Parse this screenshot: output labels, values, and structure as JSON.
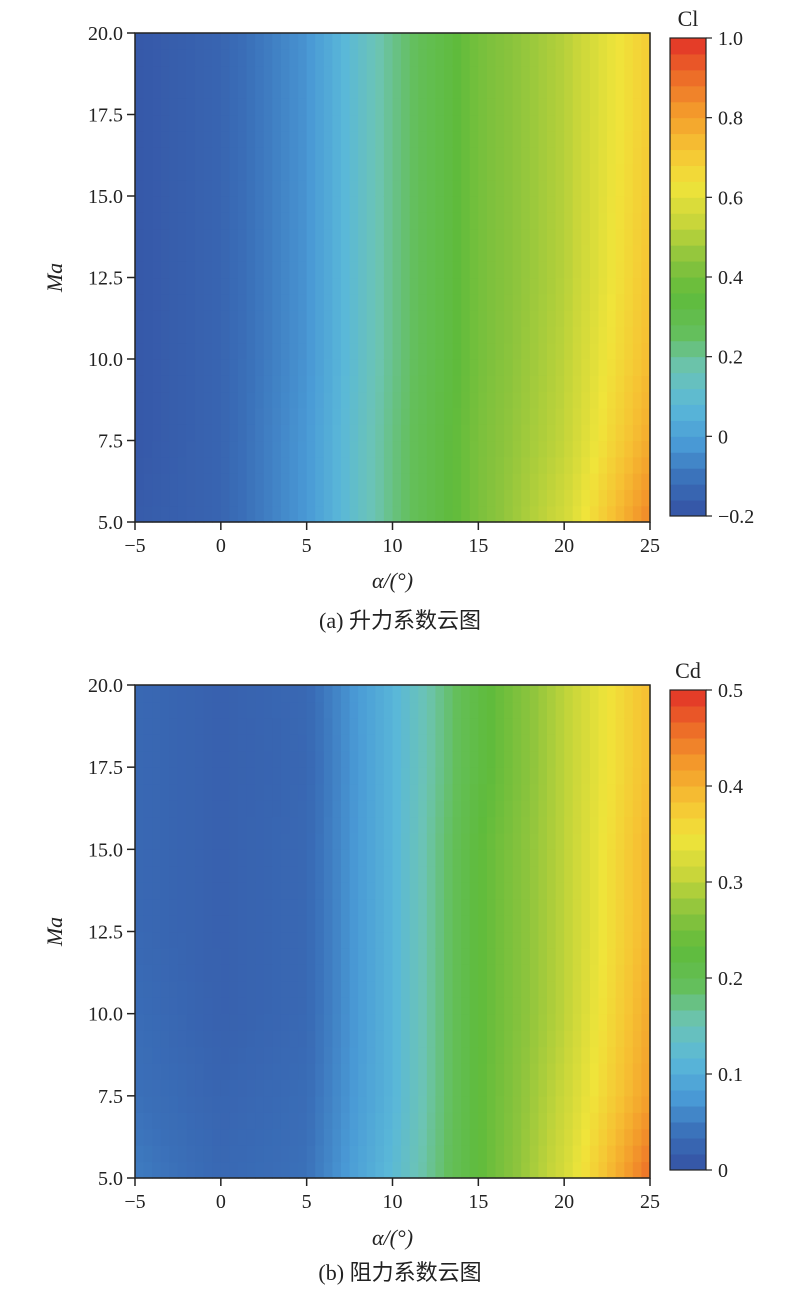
{
  "chart_data": [
    {
      "type": "heatmap",
      "caption": "(a) 升力系数云图",
      "xlabel": "α/(°)",
      "ylabel": "Ma",
      "xlim": [
        -5,
        25
      ],
      "ylim": [
        5,
        20
      ],
      "x_ticks": [
        "−5",
        "0",
        "5",
        "10",
        "15",
        "20",
        "25"
      ],
      "x_tick_values": [
        -5,
        0,
        5,
        10,
        15,
        20,
        25
      ],
      "y_ticks": [
        "5.0",
        "7.5",
        "10.0",
        "12.5",
        "15.0",
        "17.5",
        "20.0"
      ],
      "y_tick_values": [
        5,
        7.5,
        10,
        12.5,
        15,
        17.5,
        20
      ],
      "colorbar": {
        "title": "Cl",
        "range": [
          -0.2,
          1.0
        ],
        "ticks": [
          "−0.2",
          "0",
          "0.2",
          "0.4",
          "0.6",
          "0.8",
          "1.0"
        ],
        "tick_values": [
          -0.2,
          0,
          0.2,
          0.4,
          0.6,
          0.8,
          1.0
        ]
      },
      "x": [
        -5,
        0,
        5,
        10,
        15,
        20,
        25
      ],
      "y": [
        5,
        7.5,
        10,
        12.5,
        15,
        17.5,
        20
      ],
      "z": [
        [
          -0.17,
          -0.14,
          -0.02,
          0.22,
          0.41,
          0.56,
          0.86
        ],
        [
          -0.18,
          -0.14,
          -0.02,
          0.22,
          0.41,
          0.53,
          0.78
        ],
        [
          -0.18,
          -0.14,
          -0.03,
          0.21,
          0.4,
          0.52,
          0.74
        ],
        [
          -0.18,
          -0.14,
          -0.03,
          0.21,
          0.4,
          0.51,
          0.72
        ],
        [
          -0.18,
          -0.14,
          -0.03,
          0.21,
          0.4,
          0.51,
          0.71
        ],
        [
          -0.18,
          -0.14,
          -0.03,
          0.21,
          0.4,
          0.51,
          0.7
        ],
        [
          -0.18,
          -0.14,
          -0.03,
          0.21,
          0.4,
          0.51,
          0.7
        ]
      ]
    },
    {
      "type": "heatmap",
      "caption": "(b) 阻力系数云图",
      "xlabel": "α/(°)",
      "ylabel": "Ma",
      "xlim": [
        -5,
        25
      ],
      "ylim": [
        5,
        20
      ],
      "x_ticks": [
        "−5",
        "0",
        "5",
        "10",
        "15",
        "20",
        "25"
      ],
      "x_tick_values": [
        -5,
        0,
        5,
        10,
        15,
        20,
        25
      ],
      "y_ticks": [
        "5.0",
        "7.5",
        "10.0",
        "12.5",
        "15.0",
        "17.5",
        "20.0"
      ],
      "y_tick_values": [
        5,
        7.5,
        10,
        12.5,
        15,
        17.5,
        20
      ],
      "colorbar": {
        "title": "Cd",
        "range": [
          0,
          0.5
        ],
        "ticks": [
          "0",
          "0.1",
          "0.2",
          "0.3",
          "0.4",
          "0.5"
        ],
        "tick_values": [
          0,
          0.1,
          0.2,
          0.3,
          0.4,
          0.5
        ]
      },
      "x": [
        -5,
        0,
        5,
        10,
        15,
        20,
        25
      ],
      "y": [
        5,
        7.5,
        10,
        12.5,
        15,
        17.5,
        20
      ],
      "z": [
        [
          0.05,
          0.03,
          0.04,
          0.12,
          0.23,
          0.32,
          0.46
        ],
        [
          0.04,
          0.025,
          0.035,
          0.11,
          0.23,
          0.31,
          0.42
        ],
        [
          0.035,
          0.02,
          0.03,
          0.11,
          0.23,
          0.3,
          0.41
        ],
        [
          0.03,
          0.02,
          0.03,
          0.11,
          0.23,
          0.3,
          0.4
        ],
        [
          0.03,
          0.02,
          0.03,
          0.11,
          0.23,
          0.3,
          0.4
        ],
        [
          0.03,
          0.02,
          0.028,
          0.11,
          0.22,
          0.3,
          0.39
        ],
        [
          0.03,
          0.02,
          0.03,
          0.11,
          0.22,
          0.3,
          0.39
        ]
      ]
    }
  ],
  "colormap": [
    "#3552a4",
    "#3a6fb8",
    "#4a9bd6",
    "#5ab8d8",
    "#6cc4b4",
    "#64bf5a",
    "#5fbb3c",
    "#8cc43d",
    "#c8d63a",
    "#f0e43a",
    "#f6c233",
    "#f39a2b",
    "#ec6a28",
    "#e23128"
  ]
}
